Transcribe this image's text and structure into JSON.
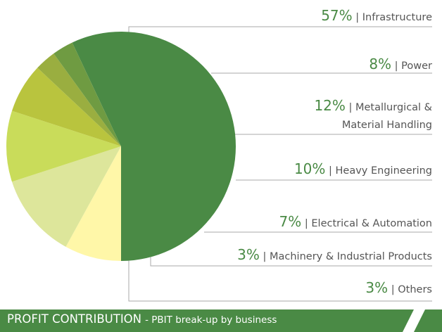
{
  "chart_data": {
    "type": "pie",
    "title": "PROFIT CONTRIBUTION",
    "subtitle": "- PBIT break-up by business",
    "categories": [
      "Infrastructure",
      "Power",
      "Metallurgical & Material Handling",
      "Heavy Engineering",
      "Electrical & Automation",
      "Machinery & Industrial Products",
      "Others"
    ],
    "values": [
      57,
      8,
      12,
      10,
      7,
      3,
      3
    ],
    "value_labels": [
      "57%",
      "8%",
      "12%",
      "10%",
      "7%",
      "3%",
      "3%"
    ],
    "colors": [
      "#4a8a45",
      "#fff7a8",
      "#dde69b",
      "#c9dc5a",
      "#b9c43e",
      "#9aae40",
      "#6f9b42"
    ]
  }
}
